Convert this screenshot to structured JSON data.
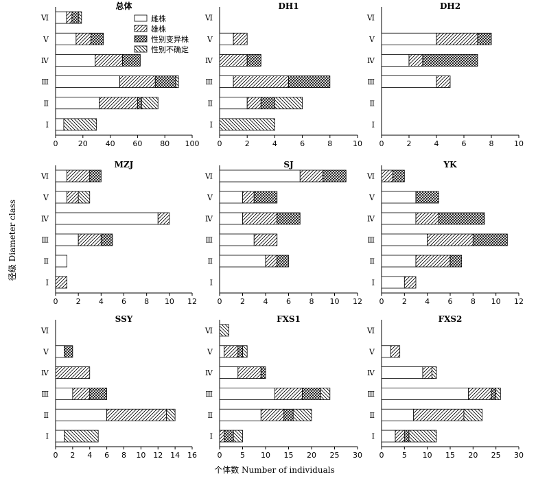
{
  "figure": {
    "xlabel": "个体数 Number of individuals",
    "ylabel": "径级 Diameter class",
    "legend": [
      "雌株",
      "雄株",
      "性别变异株",
      "性别不确定"
    ]
  },
  "chart_data": [
    {
      "type": "bar",
      "stacked": true,
      "orientation": "horizontal",
      "title": "总体",
      "categories": [
        "Ⅰ",
        "Ⅱ",
        "Ⅲ",
        "Ⅳ",
        "Ⅴ",
        "Ⅵ"
      ],
      "xlim": [
        0,
        100
      ],
      "xticks": [
        0,
        20,
        40,
        60,
        80,
        100
      ],
      "series": [
        {
          "name": "雌株",
          "values": [
            6,
            32,
            47,
            29,
            15,
            8
          ]
        },
        {
          "name": "雄株",
          "values": [
            0,
            28,
            26,
            20,
            11,
            4
          ]
        },
        {
          "name": "性别变异株",
          "values": [
            0,
            3,
            15,
            13,
            9,
            5
          ]
        },
        {
          "name": "性别不确定",
          "values": [
            24,
            12,
            2,
            0,
            0,
            2
          ]
        }
      ]
    },
    {
      "type": "bar",
      "stacked": true,
      "orientation": "horizontal",
      "title": "DH1",
      "categories": [
        "Ⅰ",
        "Ⅱ",
        "Ⅲ",
        "Ⅳ",
        "Ⅴ",
        "Ⅵ"
      ],
      "xlim": [
        0,
        10
      ],
      "xticks": [
        0,
        2,
        4,
        6,
        8,
        10
      ],
      "series": [
        {
          "name": "雌株",
          "values": [
            0,
            2,
            1,
            0,
            1,
            0
          ]
        },
        {
          "name": "雄株",
          "values": [
            0,
            1,
            4,
            2,
            1,
            0
          ]
        },
        {
          "name": "性别变异株",
          "values": [
            0,
            1,
            3,
            1,
            0,
            0
          ]
        },
        {
          "name": "性别不确定",
          "values": [
            4,
            2,
            0,
            0,
            0,
            0
          ]
        }
      ]
    },
    {
      "type": "bar",
      "stacked": true,
      "orientation": "horizontal",
      "title": "DH2",
      "categories": [
        "Ⅰ",
        "Ⅱ",
        "Ⅲ",
        "Ⅳ",
        "Ⅴ",
        "Ⅵ"
      ],
      "xlim": [
        0,
        10
      ],
      "xticks": [
        0,
        2,
        4,
        6,
        8,
        10
      ],
      "series": [
        {
          "name": "雌株",
          "values": [
            0,
            0,
            4,
            2,
            4,
            0
          ]
        },
        {
          "name": "雄株",
          "values": [
            0,
            0,
            1,
            1,
            3,
            0
          ]
        },
        {
          "name": "性别变异株",
          "values": [
            0,
            0,
            0,
            4,
            1,
            0
          ]
        },
        {
          "name": "性别不确定",
          "values": [
            0,
            0,
            0,
            0,
            0,
            0
          ]
        }
      ]
    },
    {
      "type": "bar",
      "stacked": true,
      "orientation": "horizontal",
      "title": "MZJ",
      "categories": [
        "Ⅰ",
        "Ⅱ",
        "Ⅲ",
        "Ⅳ",
        "Ⅴ",
        "Ⅵ"
      ],
      "xlim": [
        0,
        12
      ],
      "xticks": [
        0,
        2,
        4,
        6,
        8,
        10,
        12
      ],
      "series": [
        {
          "name": "雌株",
          "values": [
            0,
            1,
            2,
            9,
            1,
            1
          ]
        },
        {
          "name": "雄株",
          "values": [
            1,
            0,
            2,
            1,
            1,
            2
          ]
        },
        {
          "name": "性别变异株",
          "values": [
            0,
            0,
            1,
            0,
            0,
            1
          ]
        },
        {
          "name": "性别不确定",
          "values": [
            0,
            0,
            0,
            0,
            1,
            0
          ]
        }
      ]
    },
    {
      "type": "bar",
      "stacked": true,
      "orientation": "horizontal",
      "title": "SJ",
      "categories": [
        "Ⅰ",
        "Ⅱ",
        "Ⅲ",
        "Ⅳ",
        "Ⅴ",
        "Ⅵ"
      ],
      "xlim": [
        0,
        12
      ],
      "xticks": [
        0,
        2,
        4,
        6,
        8,
        10,
        12
      ],
      "series": [
        {
          "name": "雌株",
          "values": [
            0,
            4,
            3,
            2,
            2,
            7
          ]
        },
        {
          "name": "雄株",
          "values": [
            0,
            1,
            2,
            3,
            1,
            2
          ]
        },
        {
          "name": "性别变异株",
          "values": [
            0,
            1,
            0,
            2,
            2,
            2
          ]
        },
        {
          "name": "性别不确定",
          "values": [
            0,
            0,
            0,
            0,
            0,
            0
          ]
        }
      ]
    },
    {
      "type": "bar",
      "stacked": true,
      "orientation": "horizontal",
      "title": "YK",
      "categories": [
        "Ⅰ",
        "Ⅱ",
        "Ⅲ",
        "Ⅳ",
        "Ⅴ",
        "Ⅵ"
      ],
      "xlim": [
        0,
        12
      ],
      "xticks": [
        0,
        2,
        4,
        6,
        8,
        10,
        12
      ],
      "series": [
        {
          "name": "雌株",
          "values": [
            2,
            3,
            4,
            3,
            3,
            0
          ]
        },
        {
          "name": "雄株",
          "values": [
            1,
            3,
            4,
            2,
            0,
            1
          ]
        },
        {
          "name": "性别变异株",
          "values": [
            0,
            1,
            3,
            4,
            2,
            1
          ]
        },
        {
          "name": "性别不确定",
          "values": [
            0,
            0,
            0,
            0,
            0,
            0
          ]
        }
      ]
    },
    {
      "type": "bar",
      "stacked": true,
      "orientation": "horizontal",
      "title": "SSY",
      "categories": [
        "Ⅰ",
        "Ⅱ",
        "Ⅲ",
        "Ⅳ",
        "Ⅴ",
        "Ⅵ"
      ],
      "xlim": [
        0,
        16
      ],
      "xticks": [
        0,
        2,
        4,
        6,
        8,
        10,
        12,
        14,
        16
      ],
      "series": [
        {
          "name": "雌株",
          "values": [
            1,
            6,
            2,
            0,
            1,
            0
          ]
        },
        {
          "name": "雄株",
          "values": [
            0,
            7,
            2,
            4,
            0,
            0
          ]
        },
        {
          "name": "性别变异株",
          "values": [
            0,
            0,
            2,
            0,
            1,
            0
          ]
        },
        {
          "name": "性别不确定",
          "values": [
            4,
            1,
            0,
            0,
            0,
            0
          ]
        }
      ]
    },
    {
      "type": "bar",
      "stacked": true,
      "orientation": "horizontal",
      "title": "FXS1",
      "categories": [
        "Ⅰ",
        "Ⅱ",
        "Ⅲ",
        "Ⅳ",
        "Ⅴ",
        "Ⅵ"
      ],
      "xlim": [
        0,
        30
      ],
      "xticks": [
        0,
        5,
        10,
        15,
        20,
        25,
        30
      ],
      "series": [
        {
          "name": "雌株",
          "values": [
            0,
            9,
            12,
            4,
            1,
            0
          ]
        },
        {
          "name": "雄株",
          "values": [
            1,
            5,
            6,
            5,
            3,
            0
          ]
        },
        {
          "name": "性别变异株",
          "values": [
            2,
            2,
            4,
            1,
            1,
            0
          ]
        },
        {
          "name": "性别不确定",
          "values": [
            2,
            4,
            2,
            0,
            1,
            2
          ]
        }
      ]
    },
    {
      "type": "bar",
      "stacked": true,
      "orientation": "horizontal",
      "title": "FXS2",
      "categories": [
        "Ⅰ",
        "Ⅱ",
        "Ⅲ",
        "Ⅳ",
        "Ⅴ",
        "Ⅵ"
      ],
      "xlim": [
        0,
        30
      ],
      "xticks": [
        0,
        5,
        10,
        15,
        20,
        25,
        30
      ],
      "series": [
        {
          "name": "雌株",
          "values": [
            3,
            7,
            19,
            9,
            2,
            0
          ]
        },
        {
          "name": "雄株",
          "values": [
            2,
            11,
            5,
            2,
            2,
            0
          ]
        },
        {
          "name": "性别变异株",
          "values": [
            1,
            0,
            1,
            0,
            0,
            0
          ]
        },
        {
          "name": "性别不确定",
          "values": [
            6,
            4,
            1,
            1,
            0,
            0
          ]
        }
      ]
    }
  ]
}
